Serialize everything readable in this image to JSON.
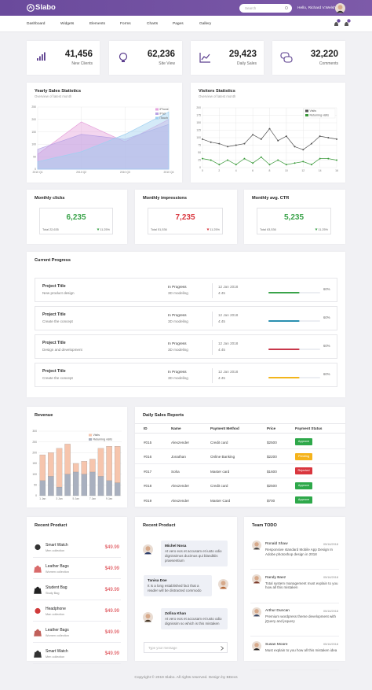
{
  "header": {
    "brand": "Slabo",
    "search_placeholder": "Search",
    "user": "Hello, Richard V.Welsh !"
  },
  "nav": [
    "Dashboard",
    "Widgets",
    "Elements",
    "Forms",
    "Charts",
    "Pages",
    "Gallery"
  ],
  "stats": [
    {
      "value": "41,456",
      "label": "New Clients"
    },
    {
      "value": "62,236",
      "label": "Site View"
    },
    {
      "value": "29,423",
      "label": "Daily Sales"
    },
    {
      "value": "32,220",
      "label": "Comments"
    }
  ],
  "chart_data": [
    {
      "type": "area",
      "title": "Yearly Sales Statistics",
      "subtitle": "Overview of latest month",
      "categories": [
        "2010 Q1",
        "2010 Q2",
        "2010 Q3",
        "2010 Q4"
      ],
      "series": [
        {
          "name": "iPhone",
          "color": "#e6a3dc",
          "values": [
            60,
            190,
            110,
            200
          ]
        },
        {
          "name": "iPad",
          "color": "#b8a2e4",
          "values": [
            80,
            140,
            120,
            180
          ]
        },
        {
          "name": "iTouch",
          "color": "#9fd0f0",
          "values": [
            30,
            70,
            140,
            230
          ]
        }
      ],
      "ylim": [
        0,
        250
      ],
      "yticks": [
        0,
        50,
        100,
        150,
        200,
        250
      ],
      "grid": true
    },
    {
      "type": "line",
      "title": "Visitors Statistics",
      "subtitle": "Overview of latest month",
      "x": [
        0,
        1,
        2,
        3,
        4,
        5,
        6,
        7,
        8,
        9,
        10,
        11,
        12,
        13,
        14,
        15,
        16
      ],
      "series": [
        {
          "name": "Visits",
          "color": "#555555",
          "values": [
            95,
            85,
            80,
            70,
            75,
            80,
            110,
            95,
            130,
            90,
            105,
            70,
            60,
            80,
            105,
            100,
            95
          ]
        },
        {
          "name": "Returning visits",
          "color": "#3a9a3a",
          "values": [
            30,
            25,
            10,
            25,
            10,
            30,
            15,
            35,
            10,
            25,
            10,
            15,
            20,
            10,
            30,
            30,
            25
          ]
        }
      ],
      "xlim": [
        0,
        16
      ],
      "xticks": [
        0,
        2,
        4,
        6,
        8,
        10,
        12,
        14,
        16
      ],
      "ylim": [
        0,
        200
      ],
      "yticks": [
        0,
        25,
        50,
        75,
        100,
        125,
        150,
        175,
        200
      ],
      "grid": true
    },
    {
      "type": "stacked-bar",
      "title": "Revenue",
      "categories": [
        "1 Jan",
        null,
        "3 Jan",
        null,
        "5 Jan",
        null,
        "7 Jan",
        null,
        "9 Jan",
        null
      ],
      "series": [
        {
          "name": "Visits",
          "color": "#f6c5ad",
          "values": [
            120,
            110,
            180,
            140,
            40,
            60,
            60,
            130,
            160,
            170
          ]
        },
        {
          "name": "Returning visits",
          "color": "#a9b0bf",
          "values": [
            70,
            90,
            40,
            100,
            110,
            100,
            110,
            90,
            70,
            60
          ]
        }
      ],
      "ylim": [
        0,
        300
      ],
      "yticks": [
        0,
        50,
        100,
        150,
        200,
        250,
        300
      ],
      "grid": true
    }
  ],
  "monthly": [
    {
      "title": "Monthly clicks",
      "value": "6,235",
      "total": "Total 22,635",
      "change": "11.25%",
      "color": "#3aa34a"
    },
    {
      "title": "Monthly impressions",
      "value": "7,235",
      "total": "Total 51,536",
      "change": "11.25%",
      "color": "#d9363e"
    },
    {
      "title": "Monthly avg. CTR",
      "value": "5,235",
      "total": "Total 63,536",
      "change": "11.25%",
      "color": "#3aa34a"
    }
  ],
  "progress": {
    "title": "Current Progress",
    "rows": [
      {
        "title": "Project Title",
        "subtitle": "New product design",
        "status": "In Progress",
        "task": "3D modeling",
        "date": "12 Jan 2018",
        "time": "4:45",
        "percent": 60,
        "percent_label": "60%",
        "color": "#3aa34a"
      },
      {
        "title": "Project Title",
        "subtitle": "Create the concept",
        "status": "In Progress",
        "task": "3D modeling",
        "date": "12 Jan 2018",
        "time": "4:45",
        "percent": 60,
        "percent_label": "60%",
        "color": "#2a8fb0"
      },
      {
        "title": "Project Title",
        "subtitle": "Design and development",
        "status": "In Progress",
        "task": "3D modeling",
        "date": "12 Jan 2018",
        "time": "4:45",
        "percent": 60,
        "percent_label": "60%",
        "color": "#c8374a"
      },
      {
        "title": "Project Title",
        "subtitle": "Create the concept",
        "status": "In Progress",
        "task": "3D modeling",
        "date": "12 Jan 2018",
        "time": "4:45",
        "percent": 60,
        "percent_label": "60%",
        "color": "#f2b51c"
      }
    ]
  },
  "daily_sales": {
    "title": "Daily Sales Reports",
    "columns": [
      "ID",
      "Name",
      "Payment Method",
      "Price",
      "Payment Status"
    ],
    "rows": [
      {
        "id": "#015",
        "name": "Alexzender",
        "method": "Credit card",
        "price": "$2500",
        "status": "Approve",
        "status_color": "#2ea84a"
      },
      {
        "id": "#016",
        "name": "Jonathan",
        "method": "Online Banking",
        "price": "$2200",
        "status": "Pending",
        "status_color": "#f5b31b"
      },
      {
        "id": "#017",
        "name": "Soha",
        "method": "Master card",
        "price": "$1600",
        "status": "Rejected",
        "status_color": "#d9363e"
      },
      {
        "id": "#018",
        "name": "Alexzender",
        "method": "Credit card",
        "price": "$2500",
        "status": "Approve",
        "status_color": "#2ea84a"
      },
      {
        "id": "#019",
        "name": "Alexzender",
        "method": "Master Card",
        "price": "$700",
        "status": "Approve",
        "status_color": "#2ea84a"
      }
    ]
  },
  "recent_products": {
    "title": "Recent Product",
    "items": [
      {
        "name": "Smart Watch",
        "category": "Men collection",
        "price": "$49.99"
      },
      {
        "name": "Leather Bags",
        "category": "Women collection",
        "price": "$49.99"
      },
      {
        "name": "Student Bag",
        "category": "Study Bag",
        "price": "$49.99"
      },
      {
        "name": "Headphone",
        "category": "Man collection",
        "price": "$49.99"
      },
      {
        "name": "Leather Bags",
        "category": "Women collection",
        "price": "$49.99"
      },
      {
        "name": "Smart Watch",
        "category": "Men collection",
        "price": "$49.99"
      }
    ]
  },
  "chat": {
    "title": "Recent Product",
    "messages": [
      {
        "author": "Michel Nosa",
        "text": "At vero eos et accusam et iusto odio dignissimos ducimus qui blanditiis praesentium"
      },
      {
        "author": "Tanisa Doe",
        "text": "It is a long established fact that a reader will be distracted commodo"
      },
      {
        "author": "Zofina Khan",
        "text": "At vero eos et accusam et iusto odio dignissim so which is this mistaken"
      }
    ],
    "input_placeholder": "Type your message"
  },
  "todo": {
    "title": "Team TODO",
    "items": [
      {
        "name": "Ronald Shaw",
        "date": "05/16/2018",
        "text": "Responsive standard Mobile App Design In Adobe photoshop design in 2018"
      },
      {
        "name": "Randy Baez",
        "date": "05/16/2018",
        "text": "Total system management must explain to you how all this mistaken"
      },
      {
        "name": "Arthur Duncan",
        "date": "05/16/2018",
        "text": "Premium wordpress theme development with jQuery and jsquery"
      },
      {
        "name": "Susan Moore",
        "date": "05/16/2018",
        "text": "Must explain to you how all this mistaken idea"
      }
    ]
  },
  "footer": "Copyright © 2019 Slabo. All rights reserved. Design by BDevs"
}
